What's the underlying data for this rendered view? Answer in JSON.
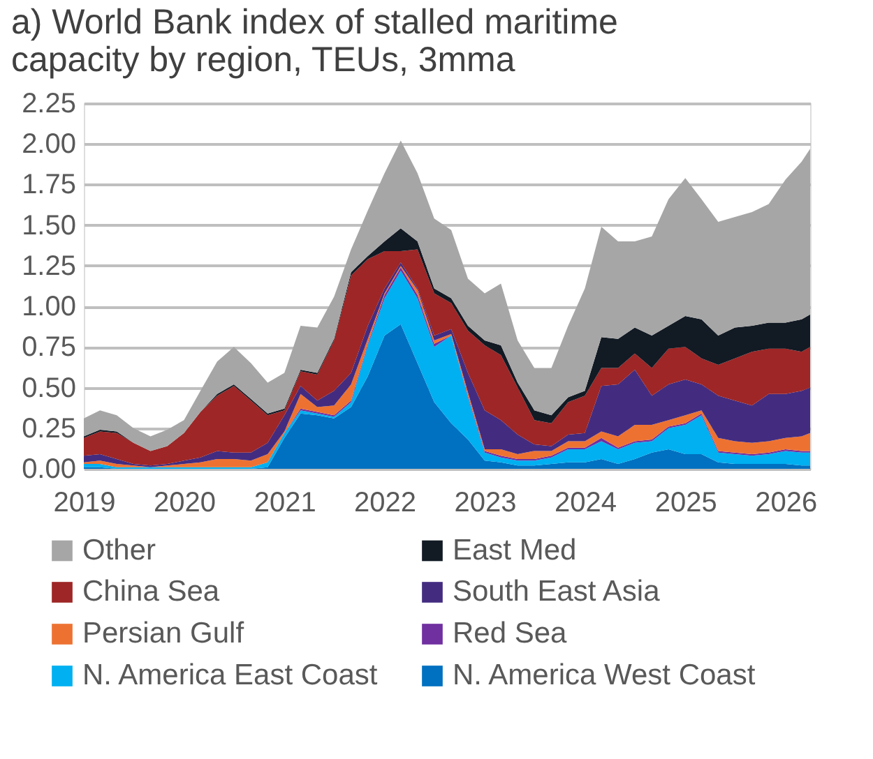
{
  "chart_data": {
    "type": "area",
    "stacked": true,
    "title": "a) World Bank index of stalled maritime capacity by region, TEUs, 3mma",
    "x": [
      "2019-01",
      "2019-03",
      "2019-05",
      "2019-07",
      "2019-09",
      "2019-11",
      "2020-01",
      "2020-03",
      "2020-05",
      "2020-07",
      "2020-09",
      "2020-11",
      "2021-01",
      "2021-03",
      "2021-05",
      "2021-07",
      "2021-09",
      "2021-11",
      "2022-01",
      "2022-03",
      "2022-05",
      "2022-07",
      "2022-09",
      "2022-11",
      "2023-01",
      "2023-03",
      "2023-05",
      "2023-07",
      "2023-09",
      "2023-11",
      "2024-01",
      "2024-03",
      "2024-05",
      "2024-07",
      "2024-09",
      "2024-11",
      "2025-01",
      "2025-03",
      "2025-05",
      "2025-07",
      "2025-09",
      "2025-11",
      "2026-01",
      "2026-03",
      "2026-04"
    ],
    "series": [
      {
        "name": "N. America West Coast",
        "color": "#0070c0",
        "values": [
          0.01,
          0.01,
          0,
          0,
          0,
          0,
          0,
          0,
          0,
          0,
          0,
          0.01,
          0.19,
          0.34,
          0.33,
          0.31,
          0.38,
          0.57,
          0.82,
          0.89,
          0.65,
          0.41,
          0.28,
          0.18,
          0.05,
          0.04,
          0.02,
          0.02,
          0.03,
          0.04,
          0.04,
          0.06,
          0.03,
          0.06,
          0.1,
          0.12,
          0.09,
          0.09,
          0.04,
          0.03,
          0.03,
          0.03,
          0.03,
          0.02,
          0.02
        ]
      },
      {
        "name": "N. America East Coast",
        "color": "#00b0f0",
        "values": [
          0.02,
          0.02,
          0.01,
          0.01,
          0.01,
          0.01,
          0.01,
          0.01,
          0.01,
          0.01,
          0.01,
          0.03,
          0.03,
          0.02,
          0.01,
          0.01,
          0.03,
          0.19,
          0.23,
          0.33,
          0.4,
          0.34,
          0.54,
          0.26,
          0.05,
          0.03,
          0.03,
          0.03,
          0.04,
          0.08,
          0.08,
          0.11,
          0.09,
          0.1,
          0.07,
          0.13,
          0.18,
          0.24,
          0.06,
          0.06,
          0.05,
          0.06,
          0.08,
          0.08,
          0.08
        ]
      },
      {
        "name": "Red Sea",
        "color": "#7030a0",
        "values": [
          0,
          0,
          0,
          0,
          0,
          0,
          0,
          0,
          0,
          0,
          0,
          0,
          0,
          0.01,
          0.01,
          0.01,
          0.01,
          0.01,
          0.02,
          0.02,
          0.02,
          0.02,
          0,
          0.01,
          0.01,
          0.01,
          0.01,
          0.01,
          0.01,
          0.01,
          0.01,
          0.02,
          0.01,
          0.01,
          0.01,
          0.01,
          0.01,
          0.01,
          0.01,
          0.01,
          0.01,
          0.01,
          0.01,
          0.01,
          0.01
        ]
      },
      {
        "name": "Persian Gulf",
        "color": "#ed7232",
        "values": [
          0.01,
          0.02,
          0.02,
          0.01,
          0,
          0.01,
          0.02,
          0.03,
          0.05,
          0.05,
          0.04,
          0.05,
          0.01,
          0.09,
          0.03,
          0.06,
          0.1,
          0.03,
          0.01,
          0.01,
          0.03,
          0.02,
          0.01,
          0.02,
          0.01,
          0.04,
          0.03,
          0.05,
          0.03,
          0.04,
          0.04,
          0.04,
          0.07,
          0.1,
          0.09,
          0.04,
          0.05,
          0.02,
          0.08,
          0.07,
          0.07,
          0.07,
          0.07,
          0.09,
          0.11
        ]
      },
      {
        "name": "South East Asia",
        "color": "#432c80",
        "values": [
          0.04,
          0.04,
          0.03,
          0.01,
          0.01,
          0.01,
          0.02,
          0.03,
          0.05,
          0.04,
          0.05,
          0.07,
          0.1,
          0.05,
          0.04,
          0.09,
          0.07,
          0.08,
          0.03,
          0.02,
          0.01,
          0.03,
          0.03,
          0.12,
          0.24,
          0.18,
          0.12,
          0.04,
          0.03,
          0.04,
          0.05,
          0.28,
          0.32,
          0.34,
          0.18,
          0.22,
          0.22,
          0.16,
          0.26,
          0.25,
          0.23,
          0.29,
          0.27,
          0.28,
          0.28
        ]
      },
      {
        "name": "China Sea",
        "color": "#9e2626",
        "values": [
          0.11,
          0.14,
          0.16,
          0.13,
          0.09,
          0.11,
          0.17,
          0.28,
          0.34,
          0.41,
          0.32,
          0.17,
          0.03,
          0.09,
          0.16,
          0.31,
          0.6,
          0.41,
          0.23,
          0.07,
          0.24,
          0.26,
          0.16,
          0.26,
          0.4,
          0.4,
          0.29,
          0.15,
          0.14,
          0.2,
          0.23,
          0.11,
          0.1,
          0.1,
          0.17,
          0.22,
          0.2,
          0.16,
          0.19,
          0.26,
          0.33,
          0.28,
          0.28,
          0.24,
          0.25
        ]
      },
      {
        "name": "East Med",
        "color": "#121a24",
        "values": [
          0.01,
          0.01,
          0.01,
          0,
          0,
          0,
          0,
          0,
          0.01,
          0.01,
          0.01,
          0.01,
          0.01,
          0.01,
          0.01,
          0.01,
          0.02,
          0.02,
          0.06,
          0.14,
          0.05,
          0.03,
          0.03,
          0.03,
          0.03,
          0.06,
          0.03,
          0.06,
          0.05,
          0.03,
          0.03,
          0.19,
          0.18,
          0.16,
          0.2,
          0.14,
          0.19,
          0.24,
          0.18,
          0.19,
          0.16,
          0.16,
          0.16,
          0.2,
          0.2
        ]
      },
      {
        "name": "Other",
        "color": "#a6a6a6",
        "values": [
          0.11,
          0.12,
          0.1,
          0.09,
          0.09,
          0.1,
          0.08,
          0.13,
          0.2,
          0.23,
          0.22,
          0.19,
          0.22,
          0.27,
          0.28,
          0.26,
          0.14,
          0.28,
          0.42,
          0.54,
          0.42,
          0.43,
          0.42,
          0.29,
          0.29,
          0.38,
          0.26,
          0.26,
          0.29,
          0.44,
          0.63,
          0.68,
          0.6,
          0.53,
          0.61,
          0.78,
          0.85,
          0.74,
          0.7,
          0.68,
          0.7,
          0.73,
          0.88,
          0.97,
          1.02
        ]
      }
    ],
    "xlim": [
      "2019-01",
      "2026-04"
    ],
    "xticks": [
      "2019",
      "2020",
      "2021",
      "2022",
      "2023",
      "2024",
      "2025",
      "2026"
    ],
    "ylim": [
      0,
      2.25
    ],
    "yticks": [
      {
        "value": 0,
        "label": "0.00"
      },
      {
        "value": 0.25,
        "label": "0.25"
      },
      {
        "value": 0.5,
        "label": "0.50"
      },
      {
        "value": 0.75,
        "label": "0.75"
      },
      {
        "value": 1,
        "label": "1.00"
      },
      {
        "value": 1.25,
        "label": "1.25"
      },
      {
        "value": 1.5,
        "label": "1.50"
      },
      {
        "value": 1.75,
        "label": "1.75"
      },
      {
        "value": 2,
        "label": "2.00"
      },
      {
        "value": 2.25,
        "label": "2.25"
      }
    ],
    "grid": "y",
    "legend": "bottom"
  }
}
